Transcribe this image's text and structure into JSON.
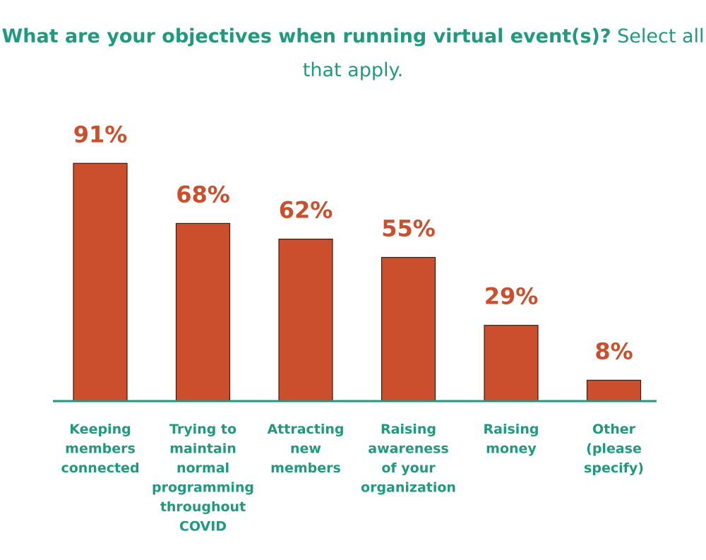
{
  "title": {
    "bold_part": "What are your objectives when running virtual event(s)?",
    "normal_part": "Select all that apply."
  },
  "chart_data": {
    "type": "bar",
    "title": "What are your objectives when running virtual event(s)? Select all that apply.",
    "categories": [
      "Keeping members connected",
      "Trying to maintain normal programming throughout COVID",
      "Attracting new members",
      "Raising awareness of your organization",
      "Raising money",
      "Other (please specify)"
    ],
    "category_lines": [
      [
        "Keeping",
        "members",
        "connected"
      ],
      [
        "Trying to",
        "maintain",
        "normal",
        "programming",
        "throughout",
        "COVID"
      ],
      [
        "Attracting",
        "new",
        "members"
      ],
      [
        "Raising",
        "awareness",
        "of your",
        "organization"
      ],
      [
        "Raising",
        "money"
      ],
      [
        "Other",
        "(please",
        "specify)"
      ]
    ],
    "values": [
      91,
      68,
      62,
      55,
      29,
      8
    ],
    "data_labels": [
      "91%",
      "68%",
      "62%",
      "55%",
      "29%",
      "8%"
    ],
    "unit": "%",
    "xlabel": "",
    "ylabel": "",
    "ylim": [
      0,
      100
    ],
    "grid": false,
    "legend": false,
    "colors": {
      "bar": "#cb4f2c",
      "text": "#1f9a7e",
      "value_labels": "#cb4f2c"
    }
  }
}
